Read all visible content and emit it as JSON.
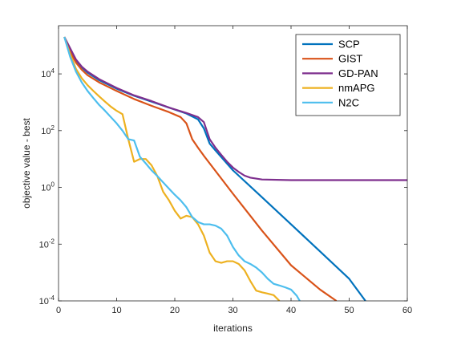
{
  "chart_data": {
    "type": "line",
    "title": "",
    "xlabel": "iterations",
    "ylabel": "objective value - best",
    "xlim": [
      0,
      60
    ],
    "ylim": [
      0.0001,
      500000
    ],
    "yscale": "log",
    "grid": false,
    "legend_position": "top-right",
    "x_ticks": [
      0,
      10,
      20,
      30,
      40,
      50,
      60
    ],
    "x_tick_labels": [
      "0",
      "10",
      "20",
      "30",
      "40",
      "50",
      "60"
    ],
    "y_ticks": [
      0.0001,
      0.01,
      1,
      100,
      10000
    ],
    "y_tick_labels": [
      {
        "base": "10",
        "exp": "-4"
      },
      {
        "base": "10",
        "exp": "-2"
      },
      {
        "base": "10",
        "exp": "0"
      },
      {
        "base": "10",
        "exp": "2"
      },
      {
        "base": "10",
        "exp": "4"
      }
    ],
    "series": [
      {
        "name": "SCP",
        "color": "#0072BD",
        "x": [
          1,
          2,
          3,
          4,
          5,
          7,
          10,
          13,
          16,
          19,
          22,
          24,
          25,
          26,
          27,
          30,
          35,
          40,
          45,
          50,
          52.8
        ],
        "y": [
          200000,
          70000,
          30000,
          17000,
          11000,
          6000,
          3000,
          1700,
          1050,
          650,
          400,
          250,
          120,
          35,
          20,
          4,
          0.45,
          0.05,
          0.0055,
          0.0006,
          0.0001
        ]
      },
      {
        "name": "GIST",
        "color": "#D95319",
        "x": [
          1,
          2,
          3,
          4,
          5,
          7,
          10,
          13,
          16,
          19,
          21,
          22,
          23,
          24,
          25,
          30,
          35,
          40,
          45,
          47.8
        ],
        "y": [
          200000,
          60000,
          25000,
          14000,
          9000,
          5000,
          2500,
          1300,
          750,
          450,
          300,
          180,
          50,
          25,
          13,
          0.6,
          0.03,
          0.0018,
          0.00025,
          0.0001
        ]
      },
      {
        "name": "GD-PAN",
        "color": "#7E2F8E",
        "x": [
          1,
          2,
          3,
          4,
          5,
          7,
          10,
          13,
          16,
          19,
          22,
          24,
          25,
          26,
          27,
          28,
          29,
          30,
          31,
          32,
          33,
          35,
          40,
          45,
          50,
          55,
          60
        ],
        "y": [
          200000,
          80000,
          32000,
          18000,
          12000,
          6500,
          3200,
          1750,
          1100,
          650,
          420,
          300,
          200,
          50,
          25,
          14,
          8,
          5,
          3.5,
          2.6,
          2.2,
          1.9,
          1.8,
          1.8,
          1.8,
          1.8,
          1.8
        ]
      },
      {
        "name": "nmAPG",
        "color": "#EDB120",
        "x": [
          1,
          2,
          3,
          4,
          5,
          6,
          7,
          8,
          9,
          10,
          11,
          12,
          13,
          14,
          15,
          16,
          17,
          18,
          19,
          20,
          21,
          22,
          23,
          24,
          25,
          26,
          27,
          28,
          29,
          30,
          31,
          32,
          33,
          34,
          35,
          36,
          37,
          38
        ],
        "y": [
          200000,
          50000,
          15000,
          7000,
          4000,
          2500,
          1600,
          1050,
          700,
          500,
          380,
          50,
          8,
          10,
          10,
          6,
          2.5,
          0.7,
          0.35,
          0.15,
          0.08,
          0.1,
          0.09,
          0.05,
          0.02,
          0.005,
          0.0025,
          0.0022,
          0.0025,
          0.0025,
          0.002,
          0.0012,
          0.0005,
          0.00023,
          0.0002,
          0.00018,
          0.00016,
          0.0001
        ]
      },
      {
        "name": "N2C",
        "color": "#4DBEEE",
        "x": [
          1,
          2,
          3,
          4,
          5,
          6,
          7,
          8,
          9,
          10,
          11,
          12,
          13,
          14,
          15,
          16,
          17,
          18,
          19,
          20,
          21,
          22,
          23,
          24,
          25,
          26,
          27,
          28,
          29,
          30,
          31,
          32,
          33,
          34,
          35,
          36,
          37,
          38,
          39,
          40,
          41,
          41.5
        ],
        "y": [
          200000,
          40000,
          12000,
          5000,
          2500,
          1400,
          800,
          500,
          300,
          180,
          100,
          50,
          45,
          12,
          7,
          4,
          2.5,
          1.5,
          0.9,
          0.55,
          0.35,
          0.2,
          0.09,
          0.06,
          0.05,
          0.05,
          0.045,
          0.035,
          0.02,
          0.008,
          0.004,
          0.0025,
          0.002,
          0.0015,
          0.001,
          0.0006,
          0.0004,
          0.00035,
          0.0003,
          0.00025,
          0.00015,
          0.0001
        ]
      }
    ]
  }
}
